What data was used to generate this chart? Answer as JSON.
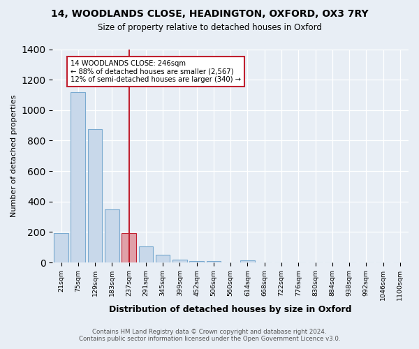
{
  "title": "14, WOODLANDS CLOSE, HEADINGTON, OXFORD, OX3 7RY",
  "subtitle": "Size of property relative to detached houses in Oxford",
  "xlabel": "Distribution of detached houses by size in Oxford",
  "ylabel": "Number of detached properties",
  "footer_line1": "Contains HM Land Registry data © Crown copyright and database right 2024.",
  "footer_line2": "Contains public sector information licensed under the Open Government Licence v3.0.",
  "bins": [
    "21sqm",
    "75sqm",
    "129sqm",
    "183sqm",
    "237sqm",
    "291sqm",
    "345sqm",
    "399sqm",
    "452sqm",
    "506sqm",
    "560sqm",
    "614sqm",
    "668sqm",
    "722sqm",
    "776sqm",
    "830sqm",
    "884sqm",
    "938sqm",
    "992sqm",
    "1046sqm",
    "1100sqm"
  ],
  "values": [
    195,
    1120,
    875,
    350,
    195,
    105,
    52,
    20,
    10,
    10,
    0,
    15,
    0,
    0,
    0,
    0,
    0,
    0,
    0,
    0,
    0
  ],
  "bar_color": "#c8d8ea",
  "bar_edge_color": "#7aaad0",
  "highlight_bar_index": 4,
  "highlight_bar_color": "#e0a0a8",
  "highlight_bar_edge_color": "#c02030",
  "vline_color": "#c02030",
  "annotation_text": "14 WOODLANDS CLOSE: 246sqm\n← 88% of detached houses are smaller (2,567)\n12% of semi-detached houses are larger (340) →",
  "annotation_box_edge_color": "#c02030",
  "ylim": [
    0,
    1400
  ],
  "yticks": [
    0,
    200,
    400,
    600,
    800,
    1000,
    1200,
    1400
  ],
  "background_color": "#e8eef5"
}
